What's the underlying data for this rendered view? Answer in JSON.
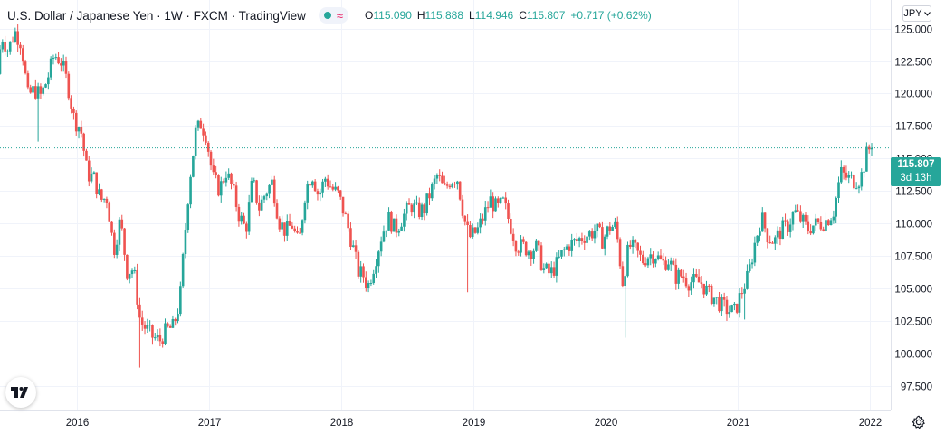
{
  "legend": {
    "title": "U.S. Dollar / Japanese Yen · 1W · FXCM · TradingView",
    "open_label": "O",
    "open": "115.090",
    "high_label": "H",
    "high": "115.888",
    "low_label": "L",
    "low": "114.946",
    "close_label": "C",
    "close": "115.807",
    "change": "+0.717 (+0.62%)"
  },
  "currency_selector": {
    "label": "JPY",
    "icon": "chevron-down-icon"
  },
  "price_tag": {
    "last_price": "115.807",
    "countdown": "3d 13h"
  },
  "icons": {
    "settings": "gear-icon",
    "logo": "tradingview-logo-icon",
    "market_status": "market-open-dot-icon",
    "indicator": "wave-icon"
  },
  "colors": {
    "up": "#26a69a",
    "down": "#ef5350",
    "grid": "#f0f3fa",
    "price_line": "#26a69a"
  },
  "chart_data": {
    "type": "candlestick",
    "title": "U.S. Dollar / Japanese Yen · 1W · FXCM · TradingView",
    "symbol": "USDJPY",
    "interval": "1W",
    "x_ticks": [
      "2016",
      "2017",
      "2018",
      "2019",
      "2020",
      "2021",
      "2022"
    ],
    "y_ticks": [
      "97.500",
      "100.000",
      "102.500",
      "105.000",
      "107.500",
      "110.000",
      "112.500",
      "115.000",
      "117.500",
      "120.000",
      "122.500",
      "125.000"
    ],
    "ylim": [
      95.6,
      127.2
    ],
    "xlim": [
      2015.42,
      2022.16
    ],
    "grid": true,
    "last_price": 115.807,
    "price_path": [
      [
        2015.42,
        121.5
      ],
      [
        2015.45,
        124.5
      ],
      [
        2015.5,
        123.3
      ],
      [
        2015.55,
        124.8
      ],
      [
        2015.6,
        123.9
      ],
      [
        2015.65,
        119.8
      ],
      [
        2015.7,
        120.3
      ],
      [
        2015.75,
        119.8
      ],
      [
        2015.8,
        121.2
      ],
      [
        2015.85,
        123.0
      ],
      [
        2015.9,
        122.5
      ],
      [
        2015.95,
        120.8
      ],
      [
        2016.0,
        118.0
      ],
      [
        2016.05,
        117.3
      ],
      [
        2016.1,
        113.8
      ],
      [
        2016.15,
        113.5
      ],
      [
        2016.2,
        111.8
      ],
      [
        2016.25,
        112.0
      ],
      [
        2016.3,
        107.9
      ],
      [
        2016.35,
        110.3
      ],
      [
        2016.4,
        106.3
      ],
      [
        2016.45,
        106.5
      ],
      [
        2016.5,
        102.5
      ],
      [
        2016.55,
        101.8
      ],
      [
        2016.6,
        101.2
      ],
      [
        2016.65,
        101.0
      ],
      [
        2016.7,
        101.8
      ],
      [
        2016.75,
        102.0
      ],
      [
        2016.8,
        104.0
      ],
      [
        2016.83,
        108.0
      ],
      [
        2016.87,
        113.0
      ],
      [
        2016.92,
        117.0
      ],
      [
        2016.96,
        117.7
      ],
      [
        2017.0,
        116.8
      ],
      [
        2017.05,
        113.5
      ],
      [
        2017.1,
        112.6
      ],
      [
        2017.15,
        114.0
      ],
      [
        2017.2,
        112.6
      ],
      [
        2017.25,
        110.6
      ],
      [
        2017.3,
        109.5
      ],
      [
        2017.35,
        113.3
      ],
      [
        2017.4,
        111.2
      ],
      [
        2017.45,
        112.4
      ],
      [
        2017.5,
        113.2
      ],
      [
        2017.55,
        110.2
      ],
      [
        2017.6,
        109.4
      ],
      [
        2017.65,
        109.9
      ],
      [
        2017.7,
        108.3
      ],
      [
        2017.75,
        112.5
      ],
      [
        2017.8,
        113.9
      ],
      [
        2017.85,
        112.1
      ],
      [
        2017.9,
        113.5
      ],
      [
        2017.95,
        112.7
      ],
      [
        2018.0,
        112.2
      ],
      [
        2018.05,
        110.6
      ],
      [
        2018.1,
        108.6
      ],
      [
        2018.15,
        106.3
      ],
      [
        2018.2,
        105.9
      ],
      [
        2018.22,
        105.0
      ],
      [
        2018.28,
        107.2
      ],
      [
        2018.33,
        109.2
      ],
      [
        2018.38,
        110.4
      ],
      [
        2018.43,
        109.5
      ],
      [
        2018.5,
        110.7
      ],
      [
        2018.55,
        111.4
      ],
      [
        2018.6,
        110.9
      ],
      [
        2018.65,
        111.1
      ],
      [
        2018.7,
        112.5
      ],
      [
        2018.75,
        113.7
      ],
      [
        2018.8,
        112.5
      ],
      [
        2018.85,
        113.4
      ],
      [
        2018.9,
        113.5
      ],
      [
        2018.95,
        110.5
      ],
      [
        2018.99,
        108.9
      ],
      [
        2019.05,
        109.4
      ],
      [
        2019.1,
        110.6
      ],
      [
        2019.15,
        111.8
      ],
      [
        2019.2,
        111.1
      ],
      [
        2019.25,
        111.6
      ],
      [
        2019.3,
        109.9
      ],
      [
        2019.35,
        108.3
      ],
      [
        2019.4,
        108.2
      ],
      [
        2019.45,
        107.9
      ],
      [
        2019.5,
        108.2
      ],
      [
        2019.55,
        106.5
      ],
      [
        2019.6,
        106.1
      ],
      [
        2019.65,
        106.8
      ],
      [
        2019.7,
        107.8
      ],
      [
        2019.75,
        108.4
      ],
      [
        2019.8,
        108.6
      ],
      [
        2019.85,
        109.0
      ],
      [
        2019.9,
        109.2
      ],
      [
        2019.95,
        109.5
      ],
      [
        2020.0,
        108.7
      ],
      [
        2020.05,
        109.7
      ],
      [
        2020.1,
        109.8
      ],
      [
        2020.15,
        105.5
      ],
      [
        2020.2,
        108.3
      ],
      [
        2020.25,
        107.9
      ],
      [
        2020.3,
        107.1
      ],
      [
        2020.35,
        107.6
      ],
      [
        2020.4,
        107.6
      ],
      [
        2020.45,
        106.9
      ],
      [
        2020.5,
        107.2
      ],
      [
        2020.55,
        105.9
      ],
      [
        2020.6,
        106.0
      ],
      [
        2020.65,
        105.5
      ],
      [
        2020.7,
        105.5
      ],
      [
        2020.75,
        105.4
      ],
      [
        2020.8,
        104.6
      ],
      [
        2020.85,
        104.2
      ],
      [
        2020.9,
        103.7
      ],
      [
        2020.95,
        103.3
      ],
      [
        2021.0,
        103.2
      ],
      [
        2021.05,
        104.7
      ],
      [
        2021.1,
        105.9
      ],
      [
        2021.15,
        108.4
      ],
      [
        2021.2,
        110.5
      ],
      [
        2021.25,
        109.0
      ],
      [
        2021.3,
        108.6
      ],
      [
        2021.35,
        109.5
      ],
      [
        2021.4,
        109.8
      ],
      [
        2021.45,
        110.9
      ],
      [
        2021.5,
        110.3
      ],
      [
        2021.55,
        109.6
      ],
      [
        2021.6,
        109.9
      ],
      [
        2021.65,
        110.0
      ],
      [
        2021.7,
        110.3
      ],
      [
        2021.75,
        111.0
      ],
      [
        2021.8,
        113.9
      ],
      [
        2021.85,
        113.5
      ],
      [
        2021.9,
        113.3
      ],
      [
        2021.95,
        113.4
      ],
      [
        2022.0,
        115.4
      ],
      [
        2022.02,
        115.8
      ]
    ]
  }
}
